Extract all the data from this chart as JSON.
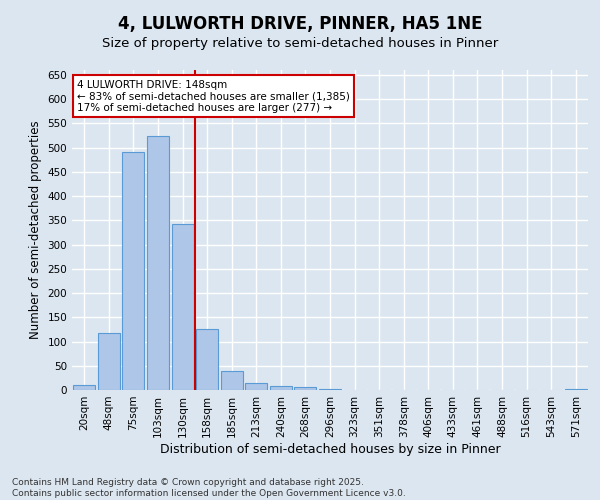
{
  "title": "4, LULWORTH DRIVE, PINNER, HA5 1NE",
  "subtitle": "Size of property relative to semi-detached houses in Pinner",
  "xlabel": "Distribution of semi-detached houses by size in Pinner",
  "ylabel": "Number of semi-detached properties",
  "categories": [
    "20sqm",
    "48sqm",
    "75sqm",
    "103sqm",
    "130sqm",
    "158sqm",
    "185sqm",
    "213sqm",
    "240sqm",
    "268sqm",
    "296sqm",
    "323sqm",
    "351sqm",
    "378sqm",
    "406sqm",
    "433sqm",
    "461sqm",
    "488sqm",
    "516sqm",
    "543sqm",
    "571sqm"
  ],
  "values": [
    10,
    118,
    490,
    523,
    342,
    125,
    40,
    15,
    8,
    7,
    3,
    0,
    0,
    0,
    0,
    0,
    0,
    0,
    0,
    0,
    3
  ],
  "bar_color": "#aec6e8",
  "bar_edge_color": "#5b9bd5",
  "vline_color": "#cc0000",
  "vline_position": 4.5,
  "annotation_box_text": "4 LULWORTH DRIVE: 148sqm\n← 83% of semi-detached houses are smaller (1,385)\n17% of semi-detached houses are larger (277) →",
  "annotation_box_color": "#cc0000",
  "annotation_box_bg": "#ffffff",
  "ylim": [
    0,
    660
  ],
  "yticks": [
    0,
    50,
    100,
    150,
    200,
    250,
    300,
    350,
    400,
    450,
    500,
    550,
    600,
    650
  ],
  "background_color": "#dce6f0",
  "grid_color": "#ffffff",
  "footer": "Contains HM Land Registry data © Crown copyright and database right 2025.\nContains public sector information licensed under the Open Government Licence v3.0.",
  "title_fontsize": 12,
  "subtitle_fontsize": 9.5,
  "xlabel_fontsize": 9,
  "ylabel_fontsize": 8.5,
  "tick_fontsize": 7.5,
  "annotation_fontsize": 7.5,
  "footer_fontsize": 6.5
}
